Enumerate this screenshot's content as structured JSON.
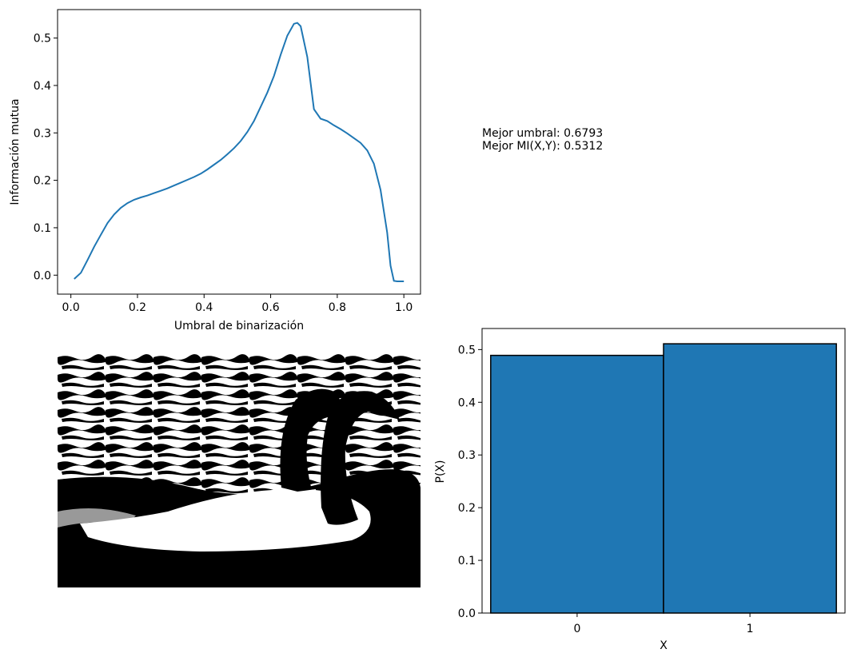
{
  "chart_data": [
    {
      "type": "line",
      "title": "",
      "xlabel": "Umbral de binarización",
      "ylabel": "Información mutua",
      "xlim": [
        -0.04,
        1.05
      ],
      "ylim": [
        -0.04,
        0.56
      ],
      "xticks": [
        "0.0",
        "0.2",
        "0.4",
        "0.6",
        "0.8",
        "1.0"
      ],
      "yticks": [
        "0.0",
        "0.1",
        "0.2",
        "0.3",
        "0.4",
        "0.5"
      ],
      "color": "#1f77b4",
      "series": [
        {
          "x": [
            0.01,
            0.03,
            0.05,
            0.07,
            0.09,
            0.11,
            0.13,
            0.15,
            0.17,
            0.19,
            0.21,
            0.23,
            0.25,
            0.27,
            0.29,
            0.31,
            0.33,
            0.35,
            0.37,
            0.39,
            0.41,
            0.43,
            0.45,
            0.47,
            0.49,
            0.51,
            0.53,
            0.55,
            0.57,
            0.59,
            0.61,
            0.63,
            0.65,
            0.67,
            0.68,
            0.69,
            0.71,
            0.73,
            0.75,
            0.77,
            0.79,
            0.81,
            0.83,
            0.85,
            0.87,
            0.89,
            0.91,
            0.93,
            0.95,
            0.96,
            0.97,
            0.98,
            1.0
          ],
          "y": [
            -0.008,
            0.005,
            0.032,
            0.06,
            0.085,
            0.11,
            0.128,
            0.142,
            0.152,
            0.159,
            0.164,
            0.168,
            0.173,
            0.178,
            0.183,
            0.189,
            0.195,
            0.201,
            0.207,
            0.214,
            0.223,
            0.233,
            0.243,
            0.255,
            0.268,
            0.283,
            0.302,
            0.325,
            0.355,
            0.385,
            0.42,
            0.465,
            0.505,
            0.53,
            0.532,
            0.525,
            0.46,
            0.35,
            0.33,
            0.325,
            0.316,
            0.308,
            0.299,
            0.289,
            0.279,
            0.263,
            0.235,
            0.18,
            0.09,
            0.02,
            -0.012,
            -0.013,
            -0.013
          ]
        }
      ]
    },
    {
      "type": "bar",
      "title": "",
      "xlabel": "X",
      "ylabel": "P(X)",
      "categories": [
        "0",
        "1"
      ],
      "values": [
        0.489,
        0.511
      ],
      "ylim": [
        0,
        0.54
      ],
      "xlim": [
        -0.55,
        1.55
      ],
      "yticks": [
        "0.0",
        "0.1",
        "0.2",
        "0.3",
        "0.4",
        "0.5"
      ],
      "color": "#1f77b4",
      "edgecolor": "#000000"
    }
  ],
  "info": {
    "line1": "Mejor umbral: 0.6793",
    "line2": "Mejor MI(X,Y): 0.5312"
  },
  "image_panel": {
    "description_icon": "binarized-swan-image"
  }
}
